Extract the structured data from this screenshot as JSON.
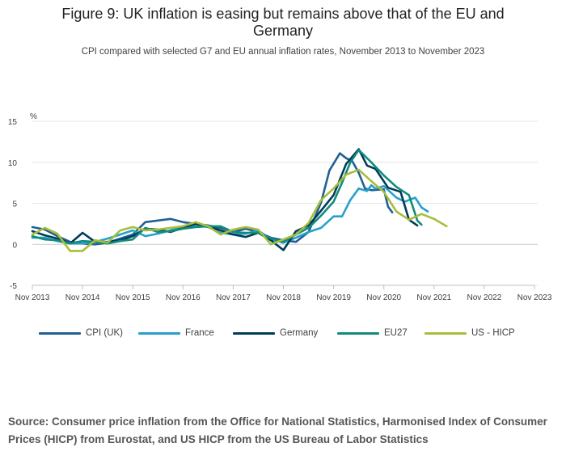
{
  "title": "Figure 9: UK inflation is easing but remains above that of the EU and Germany",
  "subtitle": "CPI compared with selected G7 and EU annual inflation rates, November 2013 to November 2023",
  "source": "Source: Consumer price inflation from the Office for National Statistics, Harmonised Index of Consumer Prices (HICP) from Eurostat, and US HICP from the US Bureau of Labor Statistics",
  "chart_data": {
    "type": "line",
    "title": "Figure 9: UK inflation is easing but remains above that of the EU and Germany",
    "ylabel": "%",
    "xlabel": "",
    "ylim": [
      -5,
      15
    ],
    "yticks": [
      -5,
      0,
      5,
      10,
      15
    ],
    "x_start": "Nov 2013",
    "x_end": "Nov 2023",
    "x_ticks": [
      "Nov 2013",
      "Nov 2014",
      "Nov 2015",
      "Nov 2016",
      "Nov 2017",
      "Nov 2018",
      "Nov 2019",
      "Nov 2020",
      "Nov 2021",
      "Nov 2022",
      "Nov 2023"
    ],
    "grid": true,
    "legend_position": "bottom",
    "series": [
      {
        "name": "CPI (UK)",
        "color": "#206095",
        "points": [
          [
            0,
            2.1
          ],
          [
            6,
            1.8
          ],
          [
            12,
            1.0
          ],
          [
            18,
            0.3
          ],
          [
            24,
            0.1
          ],
          [
            30,
            0.0
          ],
          [
            36,
            0.2
          ],
          [
            42,
            0.7
          ],
          [
            48,
            1.2
          ],
          [
            54,
            2.7
          ],
          [
            60,
            2.9
          ],
          [
            66,
            3.1
          ],
          [
            72,
            2.7
          ],
          [
            78,
            2.5
          ],
          [
            84,
            2.3
          ],
          [
            90,
            2.0
          ],
          [
            96,
            1.5
          ],
          [
            102,
            1.9
          ],
          [
            108,
            1.5
          ],
          [
            114,
            0.8
          ],
          [
            120,
            0.5
          ],
          [
            126,
            0.3
          ],
          [
            132,
            1.5
          ],
          [
            138,
            5.1
          ],
          [
            142,
            9.0
          ],
          [
            147,
            11.1
          ],
          [
            150,
            10.5
          ],
          [
            153,
            10.1
          ],
          [
            156,
            8.7
          ],
          [
            159,
            6.8
          ],
          [
            162,
            6.6
          ],
          [
            168,
            6.7
          ],
          [
            170,
            4.6
          ],
          [
            172,
            3.9
          ]
        ]
      },
      {
        "name": "France",
        "color": "#27a0cc",
        "points": [
          [
            0,
            0.8
          ],
          [
            6,
            0.8
          ],
          [
            12,
            0.4
          ],
          [
            18,
            0.1
          ],
          [
            24,
            0.1
          ],
          [
            30,
            0.3
          ],
          [
            36,
            0.7
          ],
          [
            42,
            1.2
          ],
          [
            48,
            1.7
          ],
          [
            54,
            1.0
          ],
          [
            60,
            1.3
          ],
          [
            66,
            1.7
          ],
          [
            72,
            2.2
          ],
          [
            78,
            2.3
          ],
          [
            84,
            2.1
          ],
          [
            90,
            1.4
          ],
          [
            96,
            1.2
          ],
          [
            102,
            1.3
          ],
          [
            108,
            1.7
          ],
          [
            114,
            0.6
          ],
          [
            120,
            0.2
          ],
          [
            126,
            0.8
          ],
          [
            132,
            1.5
          ],
          [
            138,
            2.0
          ],
          [
            144,
            3.4
          ],
          [
            148,
            3.4
          ],
          [
            152,
            5.4
          ],
          [
            156,
            6.8
          ],
          [
            160,
            6.5
          ],
          [
            162,
            7.2
          ],
          [
            164,
            6.8
          ],
          [
            168,
            7.1
          ],
          [
            174,
            5.7
          ],
          [
            178,
            5.2
          ],
          [
            183,
            5.7
          ],
          [
            186,
            4.5
          ],
          [
            189,
            4.0
          ]
        ]
      },
      {
        "name": "Germany",
        "color": "#003c57",
        "points": [
          [
            0,
            1.6
          ],
          [
            6,
            1.1
          ],
          [
            12,
            0.7
          ],
          [
            18,
            0.1
          ],
          [
            24,
            1.4
          ],
          [
            30,
            0.3
          ],
          [
            36,
            0.3
          ],
          [
            42,
            0.5
          ],
          [
            48,
            1.0
          ],
          [
            54,
            1.9
          ],
          [
            60,
            1.8
          ],
          [
            66,
            1.5
          ],
          [
            72,
            2.0
          ],
          [
            78,
            2.5
          ],
          [
            84,
            2.2
          ],
          [
            90,
            1.7
          ],
          [
            96,
            1.2
          ],
          [
            102,
            0.9
          ],
          [
            108,
            1.4
          ],
          [
            114,
            0.5
          ],
          [
            120,
            -0.7
          ],
          [
            126,
            1.6
          ],
          [
            132,
            2.3
          ],
          [
            138,
            4.1
          ],
          [
            144,
            6.0
          ],
          [
            150,
            9.8
          ],
          [
            156,
            11.6
          ],
          [
            160,
            9.6
          ],
          [
            164,
            9.2
          ],
          [
            170,
            6.9
          ],
          [
            176,
            6.4
          ],
          [
            180,
            3.0
          ],
          [
            184,
            2.3
          ]
        ]
      },
      {
        "name": "EU27",
        "color": "#118c7b",
        "points": [
          [
            0,
            1.0
          ],
          [
            6,
            0.6
          ],
          [
            12,
            0.5
          ],
          [
            18,
            0.1
          ],
          [
            24,
            0.4
          ],
          [
            30,
            0.3
          ],
          [
            36,
            0.1
          ],
          [
            42,
            0.4
          ],
          [
            48,
            0.6
          ],
          [
            54,
            2.0
          ],
          [
            60,
            1.5
          ],
          [
            66,
            1.6
          ],
          [
            72,
            1.9
          ],
          [
            78,
            2.1
          ],
          [
            84,
            2.2
          ],
          [
            90,
            2.2
          ],
          [
            96,
            1.5
          ],
          [
            102,
            1.4
          ],
          [
            108,
            1.4
          ],
          [
            114,
            0.7
          ],
          [
            120,
            0.3
          ],
          [
            126,
            1.2
          ],
          [
            132,
            2.0
          ],
          [
            138,
            3.5
          ],
          [
            144,
            5.2
          ],
          [
            148,
            7.5
          ],
          [
            152,
            10.0
          ],
          [
            156,
            11.5
          ],
          [
            162,
            10.0
          ],
          [
            168,
            8.4
          ],
          [
            174,
            7.0
          ],
          [
            180,
            6.0
          ],
          [
            184,
            2.9
          ],
          [
            186,
            2.4
          ]
        ]
      },
      {
        "name": "US - HICP",
        "color": "#a8bd3a",
        "points": [
          [
            0,
            1.2
          ],
          [
            6,
            2.0
          ],
          [
            12,
            1.3
          ],
          [
            18,
            -0.8
          ],
          [
            24,
            -0.8
          ],
          [
            30,
            0.5
          ],
          [
            36,
            0.2
          ],
          [
            42,
            1.7
          ],
          [
            48,
            2.1
          ],
          [
            54,
            1.7
          ],
          [
            60,
            1.8
          ],
          [
            66,
            2.0
          ],
          [
            72,
            2.2
          ],
          [
            78,
            2.7
          ],
          [
            84,
            2.2
          ],
          [
            90,
            1.2
          ],
          [
            96,
            1.8
          ],
          [
            102,
            2.1
          ],
          [
            108,
            1.8
          ],
          [
            114,
            0.0
          ],
          [
            120,
            0.6
          ],
          [
            126,
            1.2
          ],
          [
            132,
            2.6
          ],
          [
            138,
            5.4
          ],
          [
            144,
            6.8
          ],
          [
            150,
            8.5
          ],
          [
            156,
            9.1
          ],
          [
            162,
            7.7
          ],
          [
            168,
            6.4
          ],
          [
            174,
            4.0
          ],
          [
            180,
            3.0
          ],
          [
            186,
            3.7
          ],
          [
            192,
            3.1
          ],
          [
            198,
            2.2
          ]
        ]
      }
    ]
  },
  "legend": [
    {
      "label": "CPI (UK)",
      "color": "#206095"
    },
    {
      "label": "France",
      "color": "#27a0cc"
    },
    {
      "label": "Germany",
      "color": "#003c57"
    },
    {
      "label": "EU27",
      "color": "#118c7b"
    },
    {
      "label": "US - HICP",
      "color": "#a8bd3a"
    }
  ]
}
